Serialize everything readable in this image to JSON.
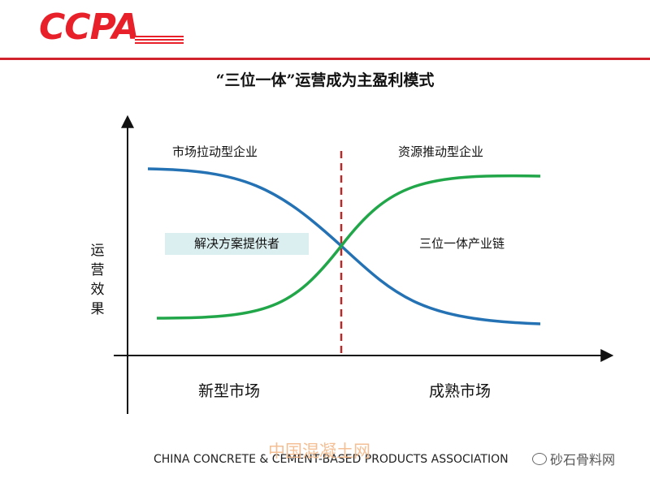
{
  "header": {
    "logo": "CCPA",
    "rule_color": "#d0232b",
    "logo_color": "#e8202a"
  },
  "slide": {
    "title": "“三位一体”运营成为主盈利模式"
  },
  "diagram": {
    "y_axis_label": "运营效果",
    "x_axis_categories": [
      "新型市场",
      "成熟市场"
    ],
    "curves": [
      {
        "label": "市场拉动型企业",
        "trend": "decreasing",
        "color": "#2472b4"
      },
      {
        "label": "资源推动型企业",
        "trend": "increasing",
        "color": "#22a64a"
      }
    ],
    "region_labels": {
      "left": "解决方案提供者",
      "right": "三位一体产业链"
    },
    "divider": {
      "style": "dashed",
      "color": "#b52a2a"
    }
  },
  "footer": {
    "text": "CHINA CONCRETE & CEMENT-BASED PRODUCTS ASSOCIATION"
  },
  "watermarks": {
    "site": "中国混凝土网",
    "account": "砂石骨料网"
  }
}
